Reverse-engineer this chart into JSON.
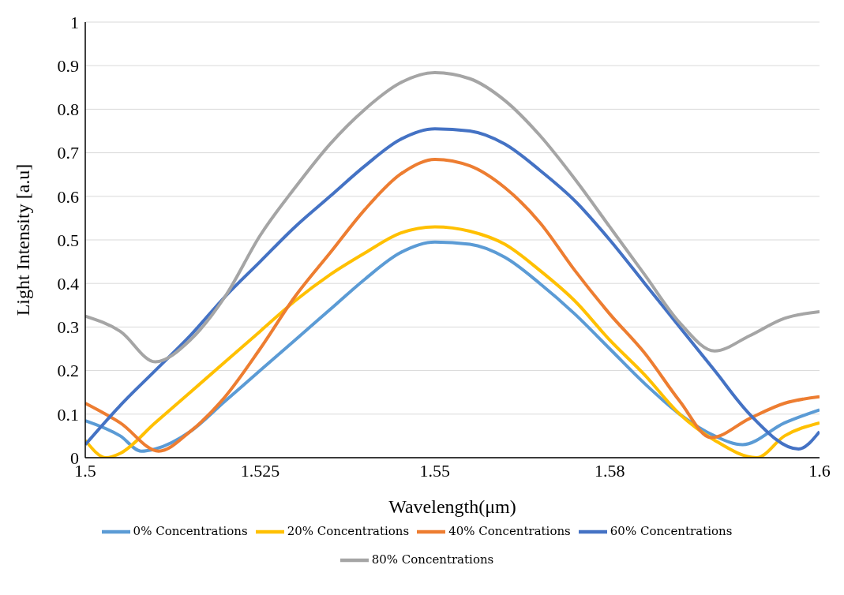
{
  "chart_data": {
    "type": "line",
    "xlabel": "Wavelength(μm)",
    "ylabel": "Light Intensity [a.u]",
    "xlim": [
      1.5,
      1.605
    ],
    "xticks": [
      1.5,
      1.525,
      1.55,
      {
        "value": 1.575,
        "label": "1.58"
      },
      {
        "value": 1.605,
        "label": "1.6"
      }
    ],
    "ylim": [
      0,
      1
    ],
    "yticks": [
      0,
      {
        "value": 0.1,
        "label": "0.1"
      },
      {
        "value": 0.2,
        "label": "0.2"
      },
      {
        "value": 0.3,
        "label": "0.3"
      },
      {
        "value": 0.4,
        "label": "0.4"
      },
      {
        "value": 0.5,
        "label": "0.5"
      },
      {
        "value": 0.6,
        "label": "0.6"
      },
      {
        "value": 0.7,
        "label": "0.7"
      },
      {
        "value": 0.8,
        "label": "0.8"
      },
      {
        "value": 0.9,
        "label": "0.9"
      },
      1
    ],
    "grid": "y",
    "legend": "bottom",
    "marker": "none",
    "line_style": "solid",
    "series": [
      {
        "name": "0% Concentrations",
        "color": "#5b9bd5",
        "x": [
          1.5,
          1.505,
          1.508,
          1.51,
          1.515,
          1.52,
          1.525,
          1.53,
          1.535,
          1.54,
          1.545,
          1.55,
          1.555,
          1.56,
          1.565,
          1.57,
          1.575,
          1.58,
          1.585,
          1.59,
          1.594,
          1.6,
          1.605
        ],
        "values": [
          0.085,
          0.05,
          0.015,
          0.02,
          0.06,
          0.13,
          0.2,
          0.27,
          0.34,
          0.41,
          0.47,
          0.495,
          0.49,
          0.46,
          0.4,
          0.33,
          0.25,
          0.17,
          0.1,
          0.05,
          0.03,
          0.08,
          0.11
        ]
      },
      {
        "name": "20% Concentrations",
        "color": "#ffc000",
        "x": [
          1.5,
          1.503,
          1.505,
          1.51,
          1.515,
          1.52,
          1.525,
          1.53,
          1.535,
          1.54,
          1.545,
          1.55,
          1.555,
          1.56,
          1.565,
          1.57,
          1.575,
          1.58,
          1.585,
          1.59,
          1.596,
          1.6,
          1.605
        ],
        "values": [
          0.04,
          0,
          0.01,
          0.08,
          0.15,
          0.22,
          0.29,
          0.36,
          0.42,
          0.47,
          0.515,
          0.53,
          0.52,
          0.49,
          0.43,
          0.36,
          0.27,
          0.19,
          0.1,
          0.04,
          0,
          0.05,
          0.08
        ]
      },
      {
        "name": "40% Concentrations",
        "color": "#ed7d31",
        "x": [
          1.5,
          1.505,
          1.5105,
          1.515,
          1.52,
          1.525,
          1.53,
          1.535,
          1.54,
          1.545,
          1.55,
          1.555,
          1.56,
          1.565,
          1.57,
          1.575,
          1.58,
          1.585,
          1.5895,
          1.595,
          1.6,
          1.605
        ],
        "values": [
          0.125,
          0.08,
          0.015,
          0.06,
          0.14,
          0.25,
          0.37,
          0.47,
          0.57,
          0.65,
          0.685,
          0.67,
          0.62,
          0.54,
          0.43,
          0.33,
          0.24,
          0.13,
          0.046,
          0.09,
          0.125,
          0.14
        ]
      },
      {
        "name": "60% Concentrations",
        "color": "#4472c4",
        "x": [
          1.5,
          1.505,
          1.51,
          1.515,
          1.52,
          1.525,
          1.53,
          1.535,
          1.54,
          1.545,
          1.55,
          1.555,
          1.56,
          1.565,
          1.57,
          1.575,
          1.58,
          1.585,
          1.59,
          1.595,
          1.602,
          1.605
        ],
        "values": [
          0.03,
          0.12,
          0.2,
          0.28,
          0.37,
          0.45,
          0.53,
          0.6,
          0.67,
          0.73,
          0.755,
          0.75,
          0.72,
          0.66,
          0.59,
          0.5,
          0.4,
          0.3,
          0.2,
          0.1,
          0.02,
          0.06
        ]
      },
      {
        "name": "80% Concentrations",
        "color": "#a5a5a5",
        "x": [
          1.5,
          1.505,
          1.51,
          1.515,
          1.52,
          1.525,
          1.53,
          1.535,
          1.54,
          1.545,
          1.55,
          1.555,
          1.56,
          1.565,
          1.57,
          1.575,
          1.58,
          1.585,
          1.59,
          1.595,
          1.6,
          1.605
        ],
        "values": [
          0.325,
          0.29,
          0.22,
          0.27,
          0.37,
          0.51,
          0.62,
          0.72,
          0.8,
          0.86,
          0.884,
          0.87,
          0.82,
          0.74,
          0.64,
          0.53,
          0.42,
          0.31,
          0.245,
          0.28,
          0.32,
          0.335
        ]
      }
    ]
  }
}
